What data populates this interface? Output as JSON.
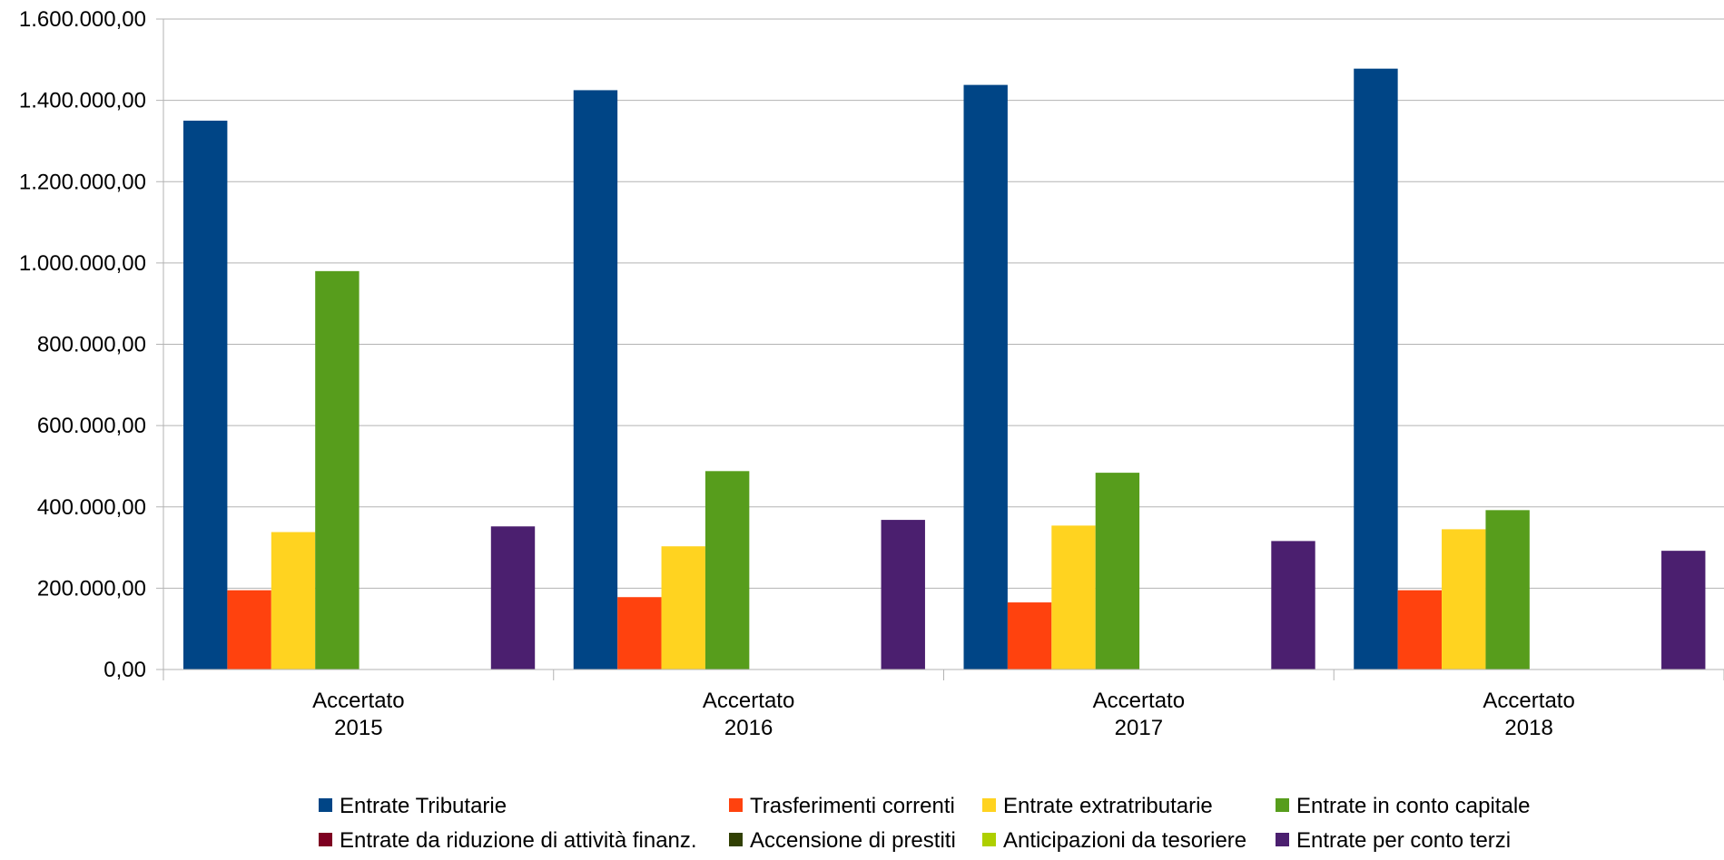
{
  "chart_data": {
    "type": "bar",
    "categories": [
      [
        "Accertato",
        "2015"
      ],
      [
        "Accertato",
        "2016"
      ],
      [
        "Accertato",
        "2017"
      ],
      [
        "Accertato",
        "2018"
      ]
    ],
    "series": [
      {
        "name": "Entrate Tributarie",
        "color": "#004586",
        "values": [
          1350000,
          1425000,
          1438000,
          1478000
        ]
      },
      {
        "name": "Trasferimenti correnti",
        "color": "#ff420e",
        "values": [
          195000,
          178000,
          165000,
          195000
        ]
      },
      {
        "name": "Entrate extratributarie",
        "color": "#ffd320",
        "values": [
          338000,
          303000,
          354000,
          345000
        ]
      },
      {
        "name": "Entrate in conto capitale",
        "color": "#579d1c",
        "values": [
          980000,
          488000,
          484000,
          392000
        ]
      },
      {
        "name": "Entrate da riduzione di attività finanz.",
        "color": "#7e0021",
        "values": [
          0,
          0,
          0,
          0
        ]
      },
      {
        "name": "Accensione di prestiti",
        "color": "#314004",
        "values": [
          0,
          0,
          0,
          0
        ]
      },
      {
        "name": "Anticipazioni da tesoriere",
        "color": "#aecf00",
        "values": [
          0,
          0,
          0,
          0
        ]
      },
      {
        "name": "Entrate per conto terzi",
        "color": "#4b1f6f",
        "values": [
          352000,
          368000,
          316000,
          292000
        ]
      }
    ],
    "y_ticks": [
      "0,00",
      "200.000,00",
      "400.000,00",
      "600.000,00",
      "800.000,00",
      "1.000.000,00",
      "1.200.000,00",
      "1.400.000,00",
      "1.600.000,00"
    ],
    "ylim": [
      0,
      1600000
    ],
    "grid": true,
    "gridline_color": "#b3b3b3",
    "legend_position": "bottom"
  }
}
